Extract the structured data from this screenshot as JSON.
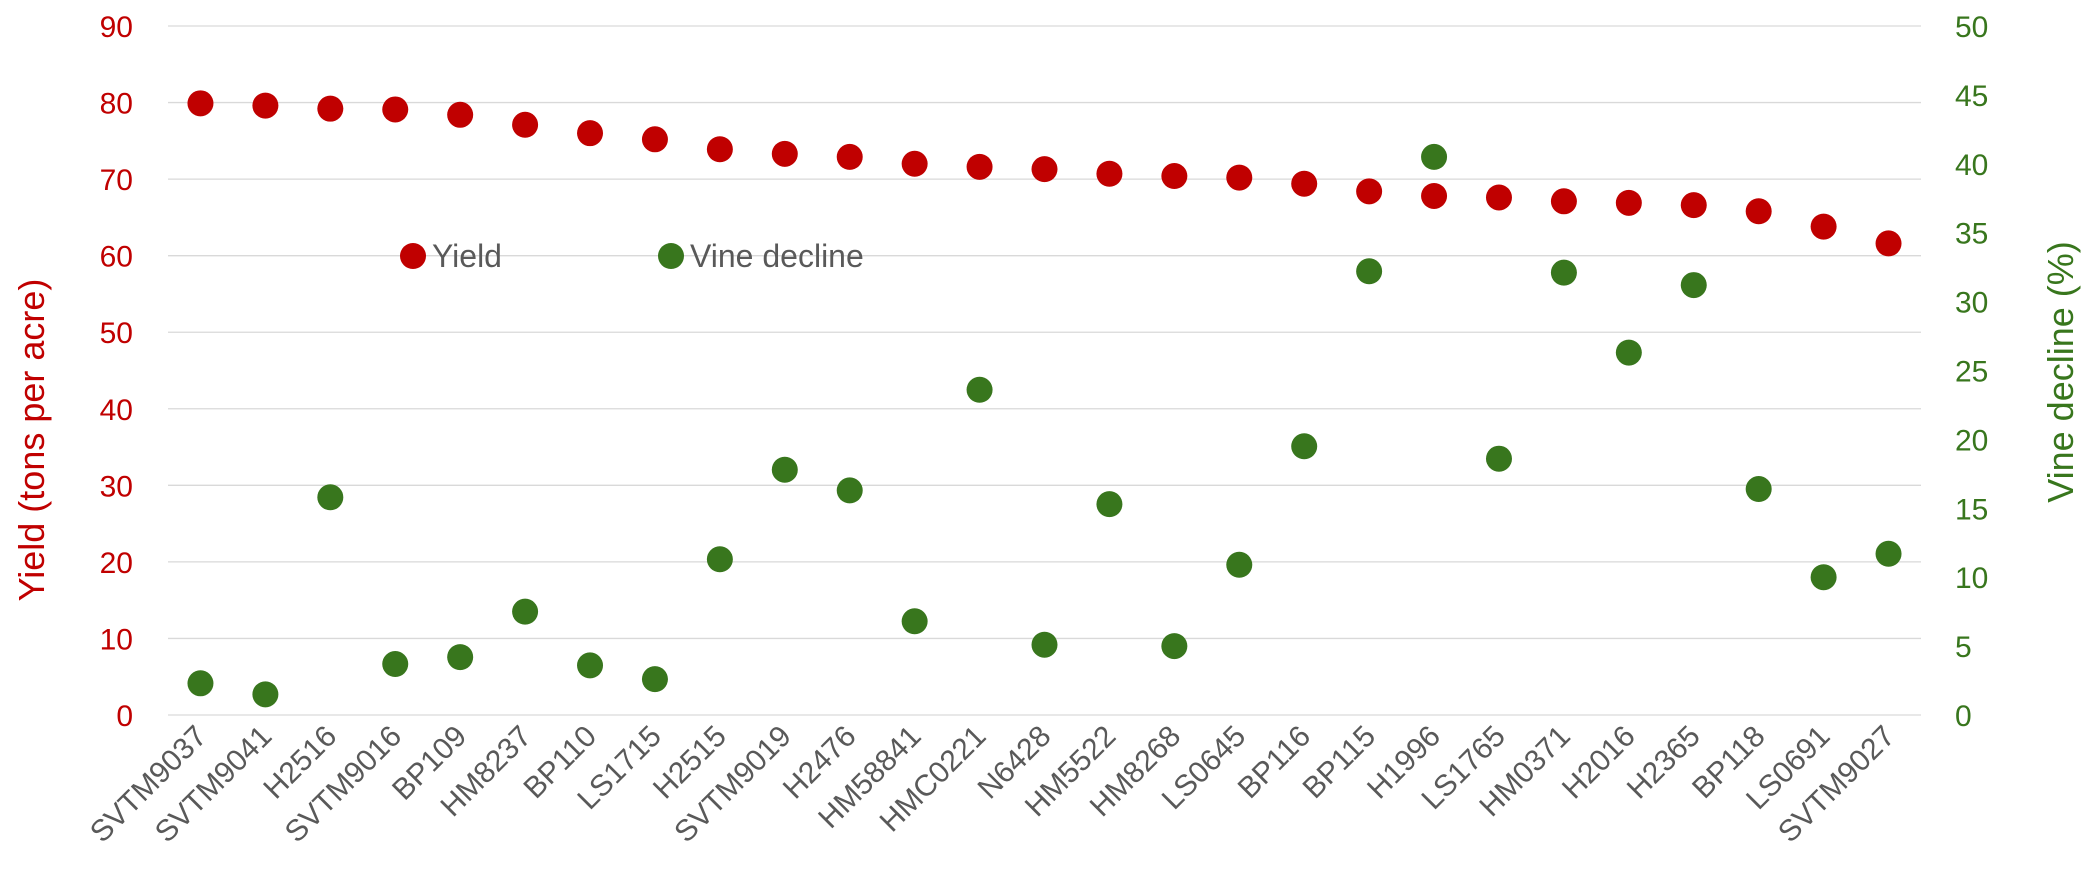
{
  "chart_data": {
    "type": "scatter",
    "categories": [
      "SVTM9037",
      "SVTM9041",
      "H2516",
      "SVTM9016",
      "BP109",
      "HM8237",
      "BP110",
      "LS1715",
      "H2515",
      "SVTM9019",
      "H2476",
      "HM58841",
      "HMC0221",
      "N6428",
      "HM5522",
      "HM8268",
      "LS0645",
      "BP116",
      "BP115",
      "H1996",
      "LS1765",
      "HM0371",
      "H2016",
      "H2365",
      "BP118",
      "LS0691",
      "SVTM9027"
    ],
    "series": [
      {
        "name": "Yield",
        "axis": "left",
        "color": "#c00000",
        "values": [
          79.9,
          79.6,
          79.2,
          79.1,
          78.4,
          77.1,
          76.0,
          75.2,
          73.9,
          73.3,
          72.9,
          72.0,
          71.6,
          71.3,
          70.7,
          70.4,
          70.2,
          69.4,
          68.4,
          67.8,
          67.6,
          67.1,
          66.9,
          66.6,
          65.8,
          63.8,
          61.6
        ]
      },
      {
        "name": "Vine decline",
        "axis": "right",
        "color": "#38761d",
        "values": [
          2.3,
          1.5,
          15.8,
          3.7,
          4.2,
          7.5,
          3.6,
          2.6,
          11.3,
          17.8,
          16.3,
          6.8,
          23.6,
          5.1,
          15.3,
          5.0,
          10.9,
          19.5,
          32.2,
          40.5,
          18.6,
          32.1,
          26.3,
          31.2,
          16.4,
          10.0,
          11.7
        ]
      }
    ],
    "ylabel": "Yield (tons per acre)",
    "y2label": "Vine decline (%)",
    "ylim": [
      0,
      90
    ],
    "y2lim": [
      0,
      50
    ],
    "yticks": [
      "0",
      "10",
      "20",
      "30",
      "40",
      "50",
      "60",
      "70",
      "80",
      "90"
    ],
    "y2ticks": [
      "0",
      "5",
      "10",
      "15",
      "20",
      "25",
      "30",
      "35",
      "40",
      "45",
      "50"
    ],
    "grid": true,
    "legend_position": "inside-top-left",
    "left_axis_color": "#c00000",
    "right_axis_color": "#38761d"
  }
}
